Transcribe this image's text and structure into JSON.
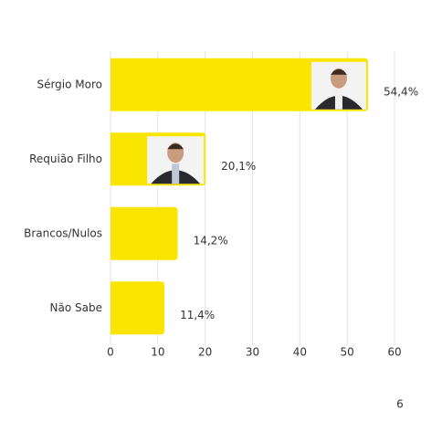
{
  "chart_data": {
    "type": "bar",
    "orientation": "horizontal",
    "categories": [
      "Sérgio Moro",
      "Requião Filho",
      "Brancos/Nulos",
      "Não Sabe"
    ],
    "values": [
      54.4,
      20.1,
      14.2,
      11.4
    ],
    "value_labels": [
      "54,4%",
      "20,1%",
      "14,2%",
      "11,4%"
    ],
    "color": "#fae500",
    "xlim": [
      0,
      60
    ],
    "xticks": [
      0,
      10,
      20,
      30,
      40,
      50,
      60
    ],
    "grid": true
  },
  "footer": "6"
}
